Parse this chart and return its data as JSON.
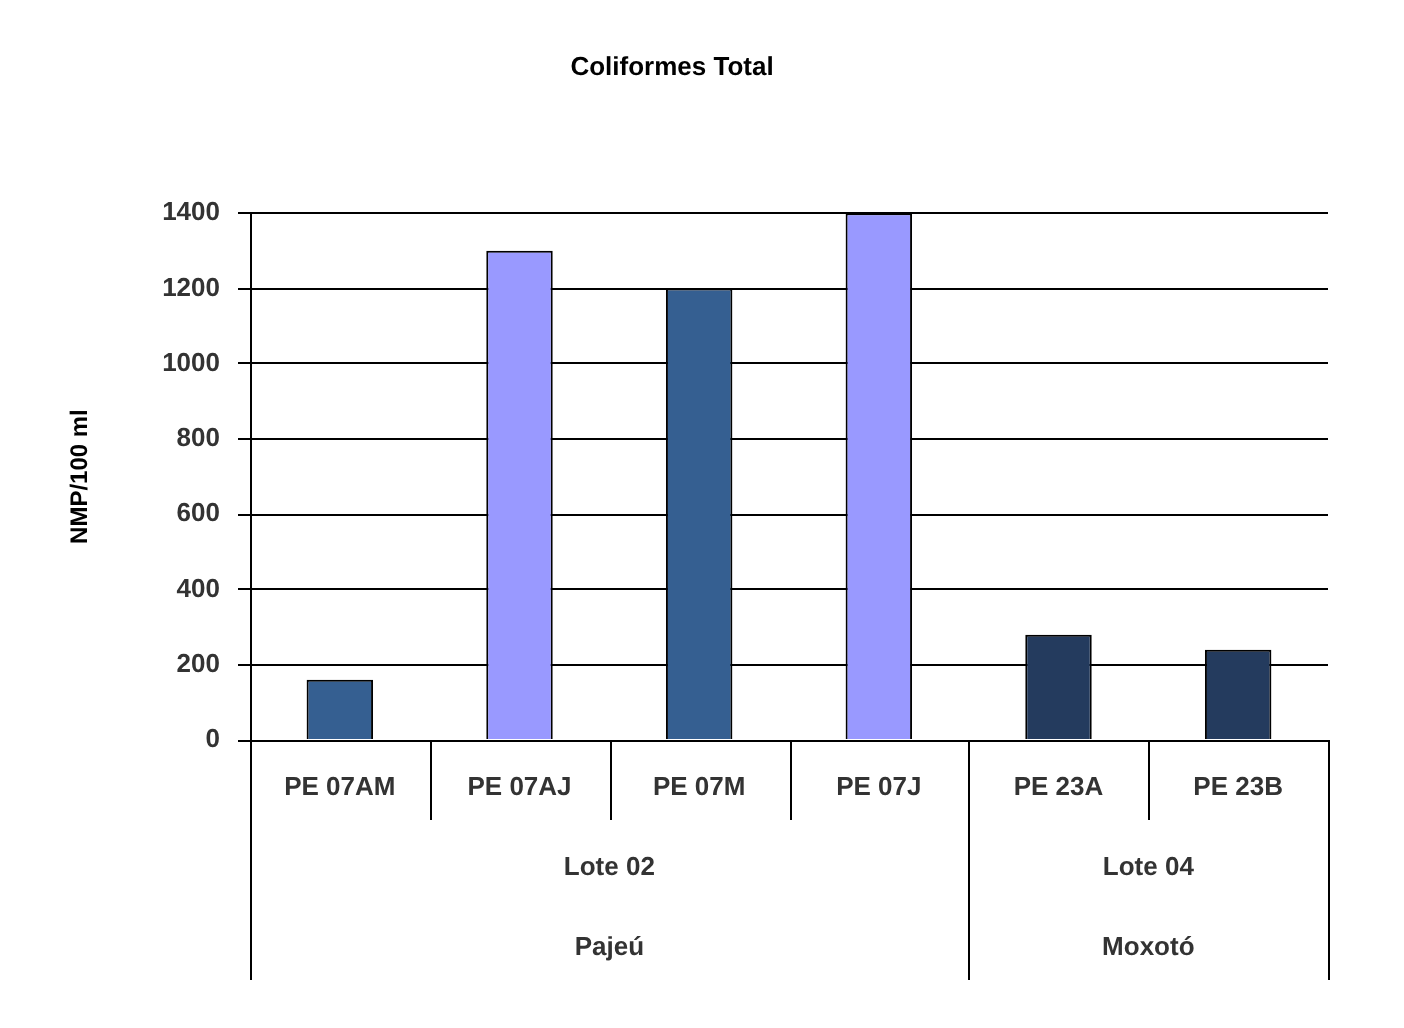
{
  "chart_data": {
    "type": "bar",
    "title": "Coliformes Total",
    "ylabel": "NMP/100 ml",
    "categories": [
      "PE 07AM",
      "PE 07AJ",
      "PE 07M",
      "PE 07J",
      "PE 23A",
      "PE 23B"
    ],
    "values": [
      160,
      1300,
      1200,
      1400,
      280,
      240
    ],
    "colors": [
      "#355f91",
      "#9999ff",
      "#355f91",
      "#9999ff",
      "#243b5e",
      "#243b5e"
    ],
    "ylim": [
      0,
      1400
    ],
    "yticks": [
      0,
      200,
      400,
      600,
      800,
      1000,
      1200,
      1400
    ],
    "grid": "y",
    "annotations": [
      "Lote 02",
      "Lote 04",
      "Pajeú",
      "Moxotó"
    ]
  }
}
